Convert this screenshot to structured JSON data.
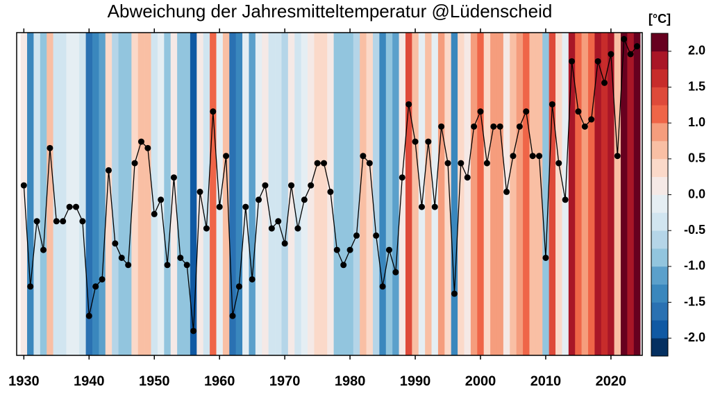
{
  "chart_data": {
    "type": "stripes-line",
    "title": "Abweichung der Jahresmitteltemperatur @Lüdenscheid",
    "colorbar_label": "[°C]",
    "x": [
      1930,
      1931,
      1932,
      1933,
      1934,
      1935,
      1936,
      1937,
      1938,
      1939,
      1940,
      1941,
      1942,
      1943,
      1944,
      1945,
      1946,
      1947,
      1948,
      1949,
      1950,
      1951,
      1952,
      1953,
      1954,
      1955,
      1956,
      1957,
      1958,
      1959,
      1960,
      1961,
      1962,
      1963,
      1964,
      1965,
      1966,
      1967,
      1968,
      1969,
      1970,
      1971,
      1972,
      1973,
      1974,
      1975,
      1976,
      1977,
      1978,
      1979,
      1980,
      1981,
      1982,
      1983,
      1984,
      1985,
      1986,
      1987,
      1988,
      1989,
      1990,
      1991,
      1992,
      1993,
      1994,
      1995,
      1996,
      1997,
      1998,
      1999,
      2000,
      2001,
      2002,
      2003,
      2004,
      2005,
      2006,
      2007,
      2008,
      2009,
      2010,
      2011,
      2012,
      2013,
      2014,
      2015,
      2016,
      2017,
      2018,
      2019,
      2020,
      2021,
      2022,
      2023,
      2024
    ],
    "values": [
      0.13,
      -1.28,
      -0.37,
      -0.77,
      0.65,
      -0.37,
      -0.37,
      -0.17,
      -0.17,
      -0.37,
      -1.69,
      -1.28,
      -1.18,
      0.34,
      -0.68,
      -0.88,
      -0.98,
      0.44,
      0.74,
      0.65,
      -0.27,
      -0.07,
      -0.98,
      0.24,
      -0.88,
      -0.98,
      -1.9,
      0.04,
      -0.47,
      1.16,
      -0.17,
      0.54,
      -1.69,
      -1.28,
      -0.17,
      -1.18,
      -0.07,
      0.13,
      -0.47,
      -0.37,
      -0.68,
      0.13,
      -0.47,
      -0.07,
      0.13,
      0.44,
      0.44,
      0.04,
      -0.77,
      -0.98,
      -0.77,
      -0.57,
      0.54,
      0.44,
      -0.57,
      -1.28,
      -0.77,
      -1.08,
      0.24,
      1.26,
      0.74,
      -0.17,
      0.74,
      -0.17,
      0.95,
      0.44,
      -1.38,
      0.44,
      0.24,
      0.95,
      1.16,
      0.44,
      0.95,
      0.95,
      0.04,
      0.54,
      0.95,
      1.16,
      0.54,
      0.54,
      -0.88,
      1.26,
      0.44,
      -0.07,
      1.86,
      1.16,
      0.95,
      1.05,
      1.86,
      1.56,
      1.96,
      0.54,
      2.17,
      1.96,
      2.07
    ],
    "line_color": "#000000",
    "xlim": [
      1928.9,
      2024.8
    ],
    "xticks": [
      1930,
      1940,
      1950,
      1960,
      1970,
      1980,
      1990,
      2000,
      2010,
      2020
    ],
    "ylim": [
      -2.24,
      2.26
    ],
    "yticks": [
      {
        "value": -2,
        "label": "-2.0"
      },
      {
        "value": -1.5,
        "label": "-1.5"
      },
      {
        "value": -1,
        "label": "-1.0"
      },
      {
        "value": -0.5,
        "label": "-0.5"
      },
      {
        "value": 0,
        "label": "0.0"
      },
      {
        "value": 0.5,
        "label": "0.5"
      },
      {
        "value": 1,
        "label": "1.0"
      },
      {
        "value": 1.5,
        "label": "1.5"
      },
      {
        "value": 2,
        "label": "2.0"
      }
    ],
    "clim": [
      -2.25,
      2.25
    ],
    "colors": [
      "#053061",
      "#1059a3",
      "#2a71b2",
      "#3a87bd",
      "#5ba0cb",
      "#92c5de",
      "#b5d5e8",
      "#d1e5f0",
      "#e5eef3",
      "#f5e9e6",
      "#fbd9c9",
      "#f9bfa4",
      "#f59d7d",
      "#ef6548",
      "#de4a3a",
      "#c72c2b",
      "#a91627",
      "#67001f"
    ]
  }
}
